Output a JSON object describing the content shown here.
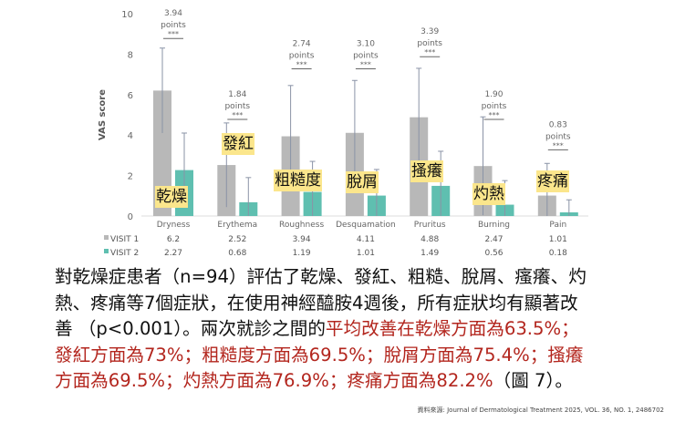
{
  "chart_data": {
    "type": "bar",
    "ylabel": "VAS score",
    "ylim": [
      0,
      10
    ],
    "yticks": [
      0,
      2,
      4,
      6,
      8,
      10
    ],
    "categories": [
      "Dryness",
      "Erythema",
      "Roughness",
      "Desquamation",
      "Pruritus",
      "Burning",
      "Pain"
    ],
    "series": [
      {
        "name": "VISIT 1",
        "color": "#b8b8b8",
        "values": [
          6.2,
          2.52,
          3.94,
          4.11,
          4.88,
          2.47,
          1.01
        ],
        "error_upper": [
          8.3,
          4.6,
          6.45,
          6.7,
          7.3,
          4.9,
          2.6
        ]
      },
      {
        "name": "VISIT 2",
        "color": "#5fbfb0",
        "values": [
          2.27,
          0.68,
          1.19,
          1.01,
          1.49,
          0.56,
          0.18
        ],
        "error_upper": [
          4.1,
          1.9,
          2.7,
          2.3,
          3.2,
          1.75,
          0.8
        ]
      }
    ],
    "table_values": {
      "VISIT 1": [
        "6.2",
        "2.52",
        "3.94",
        "4.11",
        "4.88",
        "2.47",
        "1.01"
      ],
      "VISIT 2": [
        "2.27",
        "0.68",
        "1.19",
        "1.01",
        "1.49",
        "0.56",
        "0.18"
      ]
    },
    "annotations": [
      {
        "value": "3.94",
        "unit": "points",
        "sig": "***",
        "y": 9.9
      },
      {
        "value": "1.84",
        "unit": "points",
        "sig": "***",
        "y": 5.9
      },
      {
        "value": "2.74",
        "unit": "points",
        "sig": "***",
        "y": 8.4
      },
      {
        "value": "3.10",
        "unit": "points",
        "sig": "***",
        "y": 8.4
      },
      {
        "value": "3.39",
        "unit": "points",
        "sig": "***",
        "y": 9.0
      },
      {
        "value": "1.90",
        "unit": "points",
        "sig": "***",
        "y": 5.9
      },
      {
        "value": "0.83",
        "unit": "points",
        "sig": "***",
        "y": 4.4
      }
    ],
    "grid": false
  },
  "zh_labels": [
    "乾燥",
    "發紅",
    "粗糙度",
    "脫屑",
    "搔癢",
    "灼熱",
    "疼痛"
  ],
  "paragraph": {
    "l1": "對乾燥症患者（n=94）評估了乾燥、發紅、粗糙、脫屑、瘙癢、灼",
    "l2": "熱、疼痛等7個症狀，在使用神經醯胺4週後，所有症狀均有顯著改",
    "l3a": "善 （p<0.001）。兩次就診之間的",
    "l3b": "平均改善在乾燥方面為63.5%；",
    "l4": "發紅方面為73%；粗糙度方面為69.5%；脫屑方面為75.4%；搔癢",
    "l5a": "方面為69.5%；灼熱方面為76.9%；疼痛方面為82.2%",
    "l5b": "（圖 7）。"
  },
  "source": "資料來源: Journal of Dermatological Treatment 2025, VOL. 36, NO. 1, 2486702"
}
